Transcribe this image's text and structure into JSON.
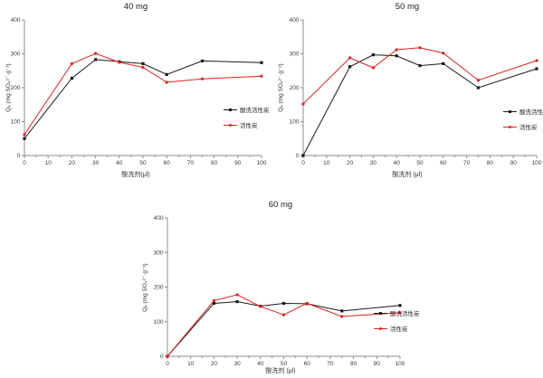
{
  "page": {
    "background": "#ffffff"
  },
  "chart_data": [
    {
      "type": "line",
      "title": "40 mg",
      "xlabel": "酸洗剂(μl)",
      "ylabel": "Qₑ (mg SO₄²⁻·g⁻¹)",
      "xlim": [
        0,
        100
      ],
      "ylim": [
        0,
        400
      ],
      "xticks": [
        0,
        10,
        20,
        30,
        40,
        50,
        60,
        70,
        80,
        90,
        100
      ],
      "yticks": [
        0,
        100,
        200,
        300,
        400
      ],
      "xminor_step": 5,
      "grid": false,
      "legend_position": "right-middle",
      "x": [
        0,
        20,
        30,
        40,
        50,
        60,
        75,
        100
      ],
      "series": [
        {
          "name": "酸洗活性炭",
          "color": "#1a1a1a",
          "marker": "square",
          "values": [
            50,
            228,
            283,
            277,
            271,
            239,
            279,
            274
          ]
        },
        {
          "name": "活性炭",
          "color": "#e02020",
          "marker": "circle",
          "values": [
            62,
            271,
            301,
            275,
            260,
            216,
            226,
            234
          ]
        }
      ]
    },
    {
      "type": "line",
      "title": "50 mg",
      "xlabel": "酸洗剂 (μl)",
      "ylabel": "Qₑ (mg SO₄²⁻·g⁻¹)",
      "xlim": [
        0,
        100
      ],
      "ylim": [
        0,
        400
      ],
      "xticks": [
        0,
        10,
        20,
        30,
        40,
        50,
        60,
        70,
        80,
        90,
        100
      ],
      "yticks": [
        0,
        100,
        200,
        300,
        400
      ],
      "xminor_step": 5,
      "grid": false,
      "legend_position": "right-middle",
      "x": [
        0,
        20,
        30,
        40,
        50,
        60,
        75,
        100
      ],
      "series": [
        {
          "name": "酸洗活性炭",
          "color": "#1a1a1a",
          "marker": "square",
          "values": [
            0,
            262,
            297,
            294,
            265,
            271,
            200,
            256
          ]
        },
        {
          "name": "活性炭",
          "color": "#e02020",
          "marker": "circle",
          "values": [
            152,
            288,
            259,
            312,
            318,
            302,
            222,
            280
          ]
        }
      ]
    },
    {
      "type": "line",
      "title": "60 mg",
      "xlabel": "酸洗剂 (μl)",
      "ylabel": "Qₑ (mg SO₄²⁻·g⁻¹)",
      "xlim": [
        0,
        100
      ],
      "ylim": [
        0,
        400
      ],
      "xticks": [
        0,
        10,
        20,
        30,
        40,
        50,
        60,
        70,
        80,
        90,
        100
      ],
      "yticks": [
        0,
        100,
        200,
        300,
        400
      ],
      "xminor_step": 5,
      "grid": false,
      "legend_position": "right-middle",
      "x": [
        0,
        20,
        30,
        40,
        50,
        60,
        75,
        100
      ],
      "series": [
        {
          "name": "酸洗活性炭",
          "color": "#1a1a1a",
          "marker": "square",
          "values": [
            0,
            153,
            158,
            145,
            153,
            152,
            131,
            147
          ]
        },
        {
          "name": "活性炭",
          "color": "#e02020",
          "marker": "circle",
          "values": [
            0,
            161,
            178,
            144,
            120,
            153,
            115,
            126
          ]
        }
      ]
    }
  ]
}
